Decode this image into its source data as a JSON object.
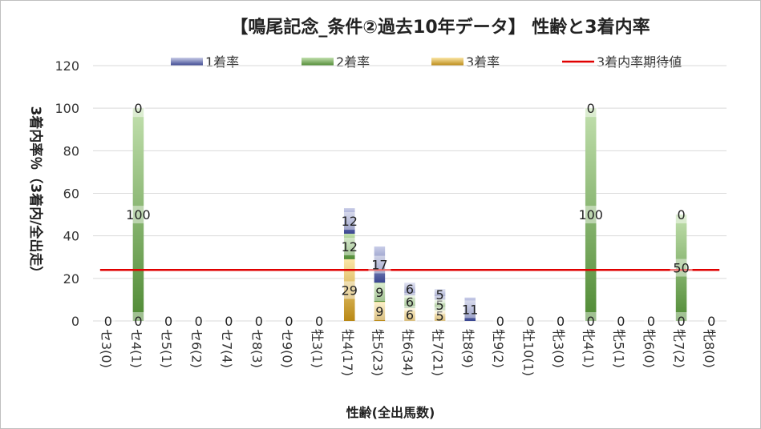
{
  "chart_data": {
    "type": "bar",
    "stacked": true,
    "title": "【鳴尾記念_条件②過去10年データ】 性齢と3着内率",
    "xlabel": "性齢(全出馬数)",
    "ylabel": "3着内率％（3着内/全出走）",
    "ylim": [
      0,
      120
    ],
    "yticks": [
      0,
      20,
      40,
      60,
      80,
      100,
      120
    ],
    "grid": true,
    "legend_position": "top",
    "categories": [
      "セ3(0)",
      "セ4(1)",
      "セ5(1)",
      "セ6(2)",
      "セ7(4)",
      "セ8(3)",
      "セ9(0)",
      "牡3(1)",
      "牡4(17)",
      "牡5(23)",
      "牡6(34)",
      "牡7(21)",
      "牡8(9)",
      "牡9(2)",
      "牡10(1)",
      "牝3(0)",
      "牝4(1)",
      "牝5(1)",
      "牝6(0)",
      "牝7(2)",
      "牝8(0)"
    ],
    "series": [
      {
        "name": "1着率",
        "color": "#5b6aad",
        "values": [
          0,
          0,
          0,
          0,
          0,
          0,
          0,
          0,
          12,
          17,
          6,
          5,
          11,
          0,
          0,
          0,
          0,
          0,
          0,
          0,
          0
        ]
      },
      {
        "name": "2着率",
        "color": "#5f9e45",
        "values": [
          0,
          100,
          0,
          0,
          0,
          0,
          0,
          0,
          12,
          9,
          6,
          5,
          0,
          0,
          0,
          0,
          100,
          0,
          0,
          50,
          0
        ]
      },
      {
        "name": "3着率",
        "color": "#d7a628",
        "values": [
          0,
          0,
          0,
          0,
          0,
          0,
          0,
          0,
          29,
          9,
          6,
          5,
          0,
          0,
          0,
          0,
          0,
          0,
          0,
          0,
          0
        ]
      }
    ],
    "data_labels": [
      [
        "0",
        "0",
        "0",
        "0",
        "0",
        "0",
        "0",
        "0",
        "12",
        "17",
        "6",
        "5",
        "11",
        "0",
        "0",
        "0",
        "0",
        "0",
        "0",
        "0",
        "0"
      ],
      [
        "",
        "100",
        "",
        "",
        "",
        "",
        "",
        "",
        "12",
        "9",
        "6",
        "5",
        "",
        "",
        "",
        "",
        "100",
        "",
        "",
        "50",
        ""
      ],
      [
        "",
        "0",
        "",
        "",
        "",
        "",
        "",
        "",
        "29",
        "9",
        "6",
        "5",
        "",
        "",
        "",
        "",
        "0",
        "",
        "",
        "0",
        ""
      ]
    ],
    "reference_line": {
      "name": "3着内率期待値",
      "value": 24,
      "color": "#e00000"
    }
  }
}
